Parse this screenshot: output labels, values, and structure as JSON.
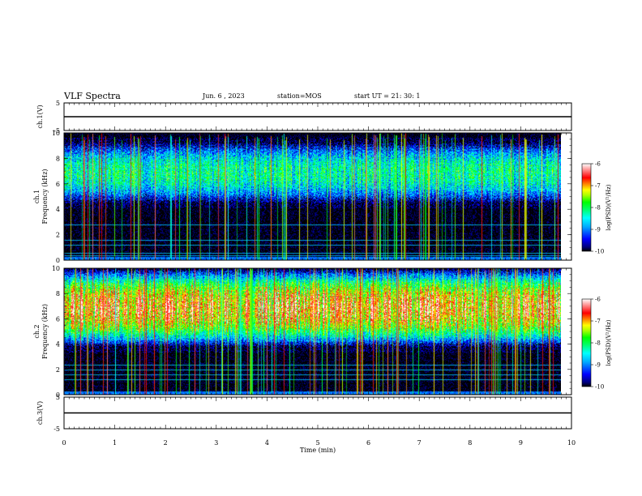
{
  "header": {
    "title": "VLF Spectra",
    "date": "Jun. 6  , 2023",
    "station": "station=MOS",
    "start_ut": "start  UT  =   21: 30: 1"
  },
  "colors": {
    "spectrum_scale": [
      "#000000",
      "#000080",
      "#0000ff",
      "#0080ff",
      "#00ffff",
      "#00ff80",
      "#00ff00",
      "#80ff00",
      "#ffff00",
      "#ff8000",
      "#ff0000",
      "#ffc0c0",
      "#ffffff"
    ]
  },
  "chart_data": [
    {
      "type": "line",
      "panel": "ch1-voltage",
      "ylabel": "ch.1(V)",
      "ylim": [
        -5,
        5
      ],
      "ytick_labels": [
        "5",
        "-5"
      ],
      "x": [
        0,
        10
      ],
      "y": [
        0,
        0
      ]
    },
    {
      "type": "heatmap",
      "panel": "ch1-spectrogram",
      "ylabel": "ch.1 Frequency (kHz)",
      "ylim": [
        0,
        10
      ],
      "ytick_labels": [
        "0",
        "2",
        "4",
        "6",
        "8",
        "10"
      ],
      "xlim": [
        0,
        9.8
      ],
      "colorbar": {
        "label": "log(PSD)(V²/Hz)",
        "range": [
          -10,
          -6
        ],
        "tick_labels": [
          "-6",
          "-7",
          "-8",
          "-9",
          "-10"
        ]
      },
      "band_khz": [
        4.5,
        9.3
      ],
      "band_peak_level": -8.2,
      "lower_horizontal_lines_khz": [
        0.4,
        0.6,
        1.2,
        1.6,
        2.8
      ]
    },
    {
      "type": "heatmap",
      "panel": "ch2-spectrogram",
      "ylabel": "ch.2 Frequency (kHz)",
      "ylim": [
        0,
        10
      ],
      "ytick_labels": [
        "0",
        "2",
        "4",
        "6",
        "8",
        "10"
      ],
      "xlim": [
        0,
        9.8
      ],
      "colorbar": {
        "label": "log(PSD)(V²/Hz)",
        "range": [
          -10,
          -6
        ],
        "tick_labels": [
          "-6",
          "-7",
          "-8",
          "-9",
          "-10"
        ]
      },
      "band_khz": [
        3.8,
        10
      ],
      "band_peak_level": -6.8,
      "lower_horizontal_lines_khz": [
        1.2,
        1.6,
        2.0,
        2.4
      ]
    },
    {
      "type": "line",
      "panel": "ch3-voltage",
      "ylabel": "ch.3(V)",
      "ylim": [
        -5,
        5
      ],
      "ytick_labels": [
        "5",
        "-5"
      ],
      "x": [
        0,
        10
      ],
      "y": [
        0,
        0
      ]
    }
  ],
  "xaxis": {
    "label": "Time (min)",
    "tick_labels": [
      "0",
      "1",
      "2",
      "3",
      "4",
      "5",
      "6",
      "7",
      "8",
      "9",
      "10"
    ],
    "xlim": [
      0,
      10
    ]
  }
}
